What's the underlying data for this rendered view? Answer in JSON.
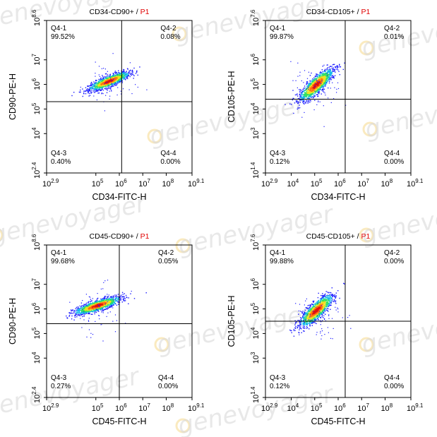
{
  "watermark": {
    "brand": "genevoyager",
    "color": "#d9d9d9",
    "dot_color": "#f6d98a"
  },
  "colors": {
    "subset": "#e00000",
    "axis": "#000000",
    "gate": "#000000",
    "density": [
      "#1c1cff",
      "#10b7e8",
      "#30e060",
      "#f0e020",
      "#ff7010",
      "#e01010"
    ]
  },
  "chart_data": [
    {
      "type": "scatter",
      "subtype": "flow-cytometry-density-dot-plot",
      "title": "CD34-CD90+ / ",
      "title_subset": "P1",
      "xlabel": "CD34-FITC-H",
      "ylabel": "CD90-PE-H",
      "x_scale": "log10",
      "y_scale": "log10",
      "xlim_exp": [
        2.9,
        9.1
      ],
      "ylim_exp": [
        2.4,
        8.6
      ],
      "x_ticks": [
        {
          "exp": 2.9,
          "label": "2.9"
        },
        {
          "exp": 5,
          "label": "5"
        },
        {
          "exp": 6,
          "label": "6"
        },
        {
          "exp": 7,
          "label": "7"
        },
        {
          "exp": 8,
          "label": "8"
        },
        {
          "exp": 9.1,
          "label": "9.1"
        }
      ],
      "y_ticks": [
        {
          "exp": 2.4,
          "label": "2.4"
        },
        {
          "exp": 4,
          "label": "4"
        },
        {
          "exp": 5,
          "label": "5"
        },
        {
          "exp": 6,
          "label": "6"
        },
        {
          "exp": 7,
          "label": "7"
        },
        {
          "exp": 8.6,
          "label": "8.6"
        }
      ],
      "gate_x_exp": 6.1,
      "gate_y_exp": 5.3,
      "population": {
        "x_center_exp": 5.55,
        "y_center_exp": 6.15,
        "slope": 0.38,
        "spread_along": 0.45,
        "spread_across": 0.1
      },
      "quadrants": [
        {
          "name": "Q4-1",
          "percent": "99.52%",
          "pos": "top-left"
        },
        {
          "name": "Q4-2",
          "percent": "0.08%",
          "pos": "top-right"
        },
        {
          "name": "Q4-3",
          "percent": "0.40%",
          "pos": "bottom-left"
        },
        {
          "name": "Q4-4",
          "percent": "0.00%",
          "pos": "bottom-right"
        }
      ]
    },
    {
      "type": "scatter",
      "subtype": "flow-cytometry-density-dot-plot",
      "title": "CD34-CD105+ / ",
      "title_subset": "P1",
      "xlabel": "CD34-FITC-H",
      "ylabel": "CD105-PE-H",
      "x_scale": "log10",
      "y_scale": "log10",
      "xlim_exp": [
        2.9,
        9.1
      ],
      "ylim_exp": [
        1.4,
        7.6
      ],
      "x_ticks": [
        {
          "exp": 2.9,
          "label": "2.9"
        },
        {
          "exp": 4,
          "label": "4"
        },
        {
          "exp": 5,
          "label": "5"
        },
        {
          "exp": 6,
          "label": "6"
        },
        {
          "exp": 7,
          "label": "7"
        },
        {
          "exp": 8,
          "label": "8"
        },
        {
          "exp": 9.1,
          "label": "9.1"
        }
      ],
      "y_ticks": [
        {
          "exp": 1.4,
          "label": "1.4"
        },
        {
          "exp": 3,
          "label": "3"
        },
        {
          "exp": 4,
          "label": "4"
        },
        {
          "exp": 5,
          "label": "5"
        },
        {
          "exp": 6,
          "label": "6"
        },
        {
          "exp": 7.6,
          "label": "7.6"
        }
      ],
      "gate_x_exp": 6.3,
      "gate_y_exp": 4.4,
      "population": {
        "x_center_exp": 5.05,
        "y_center_exp": 5.0,
        "slope": 0.9,
        "spread_along": 0.45,
        "spread_across": 0.14
      },
      "quadrants": [
        {
          "name": "Q4-1",
          "percent": "99.87%",
          "pos": "top-left"
        },
        {
          "name": "Q4-2",
          "percent": "0.01%",
          "pos": "top-right"
        },
        {
          "name": "Q4-3",
          "percent": "0.12%",
          "pos": "bottom-left"
        },
        {
          "name": "Q4-4",
          "percent": "0.00%",
          "pos": "bottom-right"
        }
      ]
    },
    {
      "type": "scatter",
      "subtype": "flow-cytometry-density-dot-plot",
      "title": "CD45-CD90+ / ",
      "title_subset": "P1",
      "xlabel": "CD45-FITC-H",
      "ylabel": "CD90-PE-H",
      "x_scale": "log10",
      "y_scale": "log10",
      "xlim_exp": [
        2.9,
        9.1
      ],
      "ylim_exp": [
        2.4,
        8.6
      ],
      "x_ticks": [
        {
          "exp": 2.9,
          "label": "2.9"
        },
        {
          "exp": 5,
          "label": "5"
        },
        {
          "exp": 6,
          "label": "6"
        },
        {
          "exp": 7,
          "label": "7"
        },
        {
          "exp": 8,
          "label": "8"
        },
        {
          "exp": 9.1,
          "label": "9.1"
        }
      ],
      "y_ticks": [
        {
          "exp": 2.4,
          "label": "2.4"
        },
        {
          "exp": 4,
          "label": "4"
        },
        {
          "exp": 5,
          "label": "5"
        },
        {
          "exp": 6,
          "label": "6"
        },
        {
          "exp": 7,
          "label": "7"
        },
        {
          "exp": 8.6,
          "label": "8.6"
        }
      ],
      "gate_x_exp": 6.0,
      "gate_y_exp": 5.4,
      "population": {
        "x_center_exp": 5.05,
        "y_center_exp": 6.15,
        "slope": 0.3,
        "spread_along": 0.5,
        "spread_across": 0.1
      },
      "quadrants": [
        {
          "name": "Q4-1",
          "percent": "99.68%",
          "pos": "top-left"
        },
        {
          "name": "Q4-2",
          "percent": "0.05%",
          "pos": "top-right"
        },
        {
          "name": "Q4-3",
          "percent": "0.27%",
          "pos": "bottom-left"
        },
        {
          "name": "Q4-4",
          "percent": "0.00%",
          "pos": "bottom-right"
        }
      ]
    },
    {
      "type": "scatter",
      "subtype": "flow-cytometry-density-dot-plot",
      "title": "CD45-CD105+ / ",
      "title_subset": "P1",
      "xlabel": "CD45-FITC-H",
      "ylabel": "CD105-PE-H",
      "x_scale": "log10",
      "y_scale": "log10",
      "xlim_exp": [
        2.9,
        9.1
      ],
      "ylim_exp": [
        1.4,
        7.6
      ],
      "x_ticks": [
        {
          "exp": 2.9,
          "label": "2.9"
        },
        {
          "exp": 4,
          "label": "4"
        },
        {
          "exp": 5,
          "label": "5"
        },
        {
          "exp": 6,
          "label": "6"
        },
        {
          "exp": 7,
          "label": "7"
        },
        {
          "exp": 8,
          "label": "8"
        },
        {
          "exp": 9.1,
          "label": "9.1"
        }
      ],
      "y_ticks": [
        {
          "exp": 1.4,
          "label": "1.4"
        },
        {
          "exp": 3,
          "label": "3"
        },
        {
          "exp": 4,
          "label": "4"
        },
        {
          "exp": 5,
          "label": "5"
        },
        {
          "exp": 6,
          "label": "6"
        },
        {
          "exp": 7.6,
          "label": "7.6"
        }
      ],
      "gate_x_exp": 6.3,
      "gate_y_exp": 4.5,
      "population": {
        "x_center_exp": 5.05,
        "y_center_exp": 4.95,
        "slope": 0.9,
        "spread_along": 0.45,
        "spread_across": 0.14
      },
      "quadrants": [
        {
          "name": "Q4-1",
          "percent": "99.88%",
          "pos": "top-left"
        },
        {
          "name": "Q4-2",
          "percent": "0.00%",
          "pos": "top-right"
        },
        {
          "name": "Q4-3",
          "percent": "0.12%",
          "pos": "bottom-left"
        },
        {
          "name": "Q4-4",
          "percent": "0.00%",
          "pos": "bottom-right"
        }
      ]
    }
  ]
}
